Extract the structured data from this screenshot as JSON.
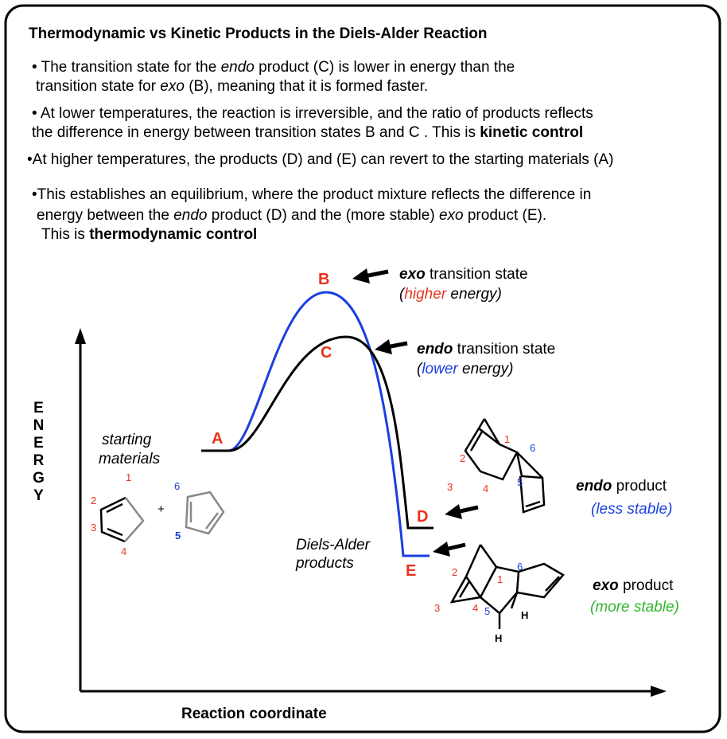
{
  "title": "Thermodynamic  vs Kinetic Products in the Diels-Alder Reaction",
  "bullets": [
    [
      [
        "• The transition state for the ",
        "endo",
        " product (C) is lower in energy than the"
      ],
      [
        "transition state for ",
        "exo",
        " (B), meaning that it is formed faster."
      ]
    ],
    [
      [
        "• At lower temperatures, the reaction is irreversible, and the ratio of products reflects"
      ],
      [
        "the difference in energy between transition states B and C . This is ",
        "kinetic control"
      ]
    ],
    [
      [
        "•At higher temperatures, the products (D) and (E) can revert to the starting materials (A)"
      ]
    ],
    [
      [
        "•This establishes an equilibrium, where the product mixture reflects the difference in"
      ],
      [
        "energy between the ",
        "endo",
        " product (D) and the (more stable) ",
        "exo",
        " product (E)."
      ],
      [
        "This is ",
        "thermodynamic control"
      ]
    ]
  ],
  "diagram": {
    "y_axis": "ENERGY",
    "x_axis": "Reaction coordinate",
    "points": [
      "A",
      "B",
      "C",
      "D",
      "E"
    ],
    "exo_ts": [
      [
        "exo",
        " transition state"
      ],
      [
        "(",
        "higher",
        " energy)"
      ]
    ],
    "endo_ts": [
      [
        "endo",
        " transition state"
      ],
      [
        "(",
        "lower",
        " energy)"
      ]
    ],
    "starting": [
      "starting",
      "materials"
    ],
    "da_products": [
      "Diels-Alder",
      "products"
    ],
    "endo_product": [
      [
        "endo",
        " product"
      ],
      "(less stable)"
    ],
    "exo_product": [
      [
        "exo",
        " product"
      ],
      "(more stable)"
    ],
    "diene_atoms": [
      "1",
      "2",
      "3",
      "4"
    ],
    "plus": "+",
    "dienophile_atoms": [
      "6",
      "5"
    ],
    "endo_atoms": [
      "1",
      "2",
      "3",
      "4",
      "5",
      "6"
    ],
    "exo_atoms": [
      "1",
      "2",
      "3",
      "4",
      "5",
      "6"
    ],
    "exo_h": [
      "H",
      "H"
    ]
  }
}
